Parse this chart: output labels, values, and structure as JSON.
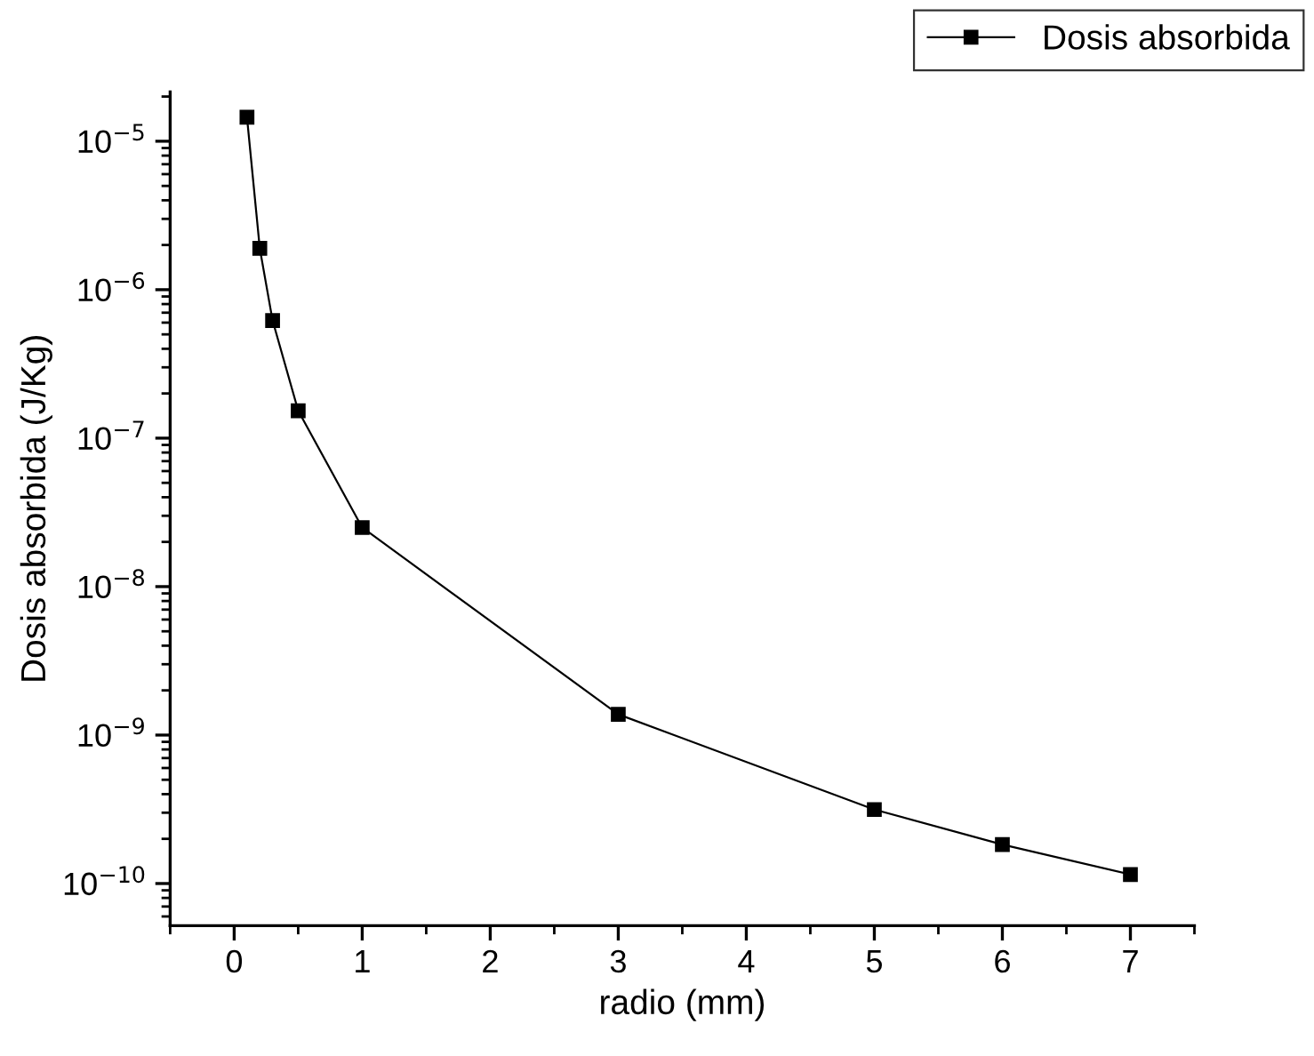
{
  "chart_data": {
    "type": "line",
    "xlabel": "radio (mm)",
    "ylabel": "Dosis absorbida (J/Kg)",
    "x": [
      0.1,
      0.2,
      0.3,
      0.5,
      1,
      3,
      5,
      6,
      7
    ],
    "series": [
      {
        "name": "Dosis absorbida",
        "color": "#000000",
        "values": [
          1.45e-05,
          1.9e-06,
          6.2e-07,
          1.53e-07,
          2.5e-08,
          1.38e-09,
          3.15e-10,
          1.83e-10,
          1.15e-10
        ]
      }
    ],
    "log": "y",
    "xlim": [
      -0.5,
      7.5
    ],
    "ylim": [
      5.2e-11,
      2.15e-05
    ],
    "xticks": [
      0,
      1,
      2,
      3,
      4,
      5,
      6,
      7
    ],
    "yticks": [
      {
        "value": 1e-10,
        "label": "10$^{−10}$"
      },
      {
        "value": 1e-09,
        "label": "10$^{−9}$"
      },
      {
        "value": 1e-08,
        "label": "10$^{−8}$"
      },
      {
        "value": 1e-07,
        "label": "10$^{−7}$"
      },
      {
        "value": 1e-06,
        "label": "10$^{−6}$"
      },
      {
        "value": 1e-05,
        "label": "10$^{−5}$"
      }
    ],
    "marker": "square",
    "line_style": "solid",
    "grid": false,
    "legend": "top right"
  }
}
